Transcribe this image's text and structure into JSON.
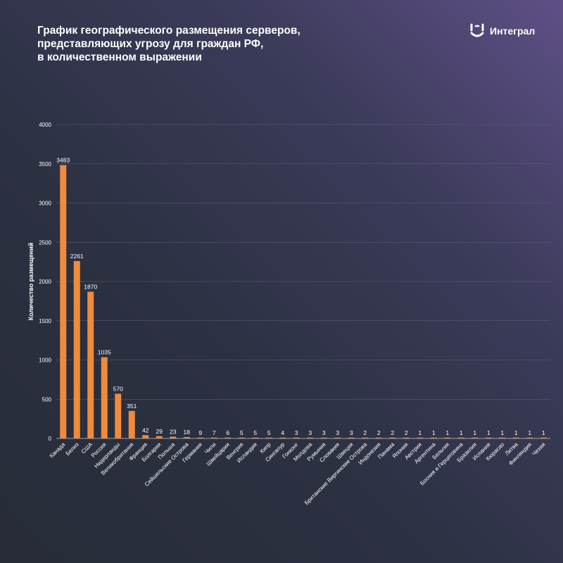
{
  "header": {
    "title_lines": [
      "График географического размещения серверов,",
      "представляющих угрозу для граждан РФ,",
      "в количественном выражении"
    ],
    "logo_text": "Интеграл",
    "logo_icon": "integral-logo-icon"
  },
  "colors": {
    "bar": "#f08a3c",
    "gridline": "#5c6275",
    "axis": "#9aa0ad",
    "text": "#ffffff"
  },
  "chart_data": {
    "type": "bar",
    "title": "График географического размещения серверов, представляющих угрозу для граждан РФ, в количественном выражении",
    "xlabel": "",
    "ylabel": "Количество размещений",
    "ylim": [
      0,
      4000
    ],
    "yticks": [
      0,
      500,
      1000,
      1500,
      2000,
      2500,
      3000,
      3500,
      4000
    ],
    "grid": true,
    "legend": "none",
    "categories": [
      "Канада",
      "Белиз",
      "США",
      "Россия",
      "Нидерланды",
      "Великобритания",
      "Франция",
      "Болгария",
      "Польша",
      "Сейшельские Острова",
      "Германия",
      "Чили",
      "Швейцария",
      "Венгрия",
      "Исландия",
      "Кипр",
      "Сингапур",
      "Гонконг",
      "Молдова",
      "Румыния",
      "Словакия",
      "Швеция",
      "Британские Виргинские Острова",
      "Индонезия",
      "Панама",
      "Япония",
      "Австрия",
      "Аргентина",
      "Бельгия",
      "Босния и Герцеговина",
      "Бразилия",
      "Испания",
      "Кюрасао",
      "Литва",
      "Финляндия",
      "Чехия"
    ],
    "values": [
      3483,
      2261,
      1870,
      1035,
      570,
      351,
      42,
      29,
      23,
      18,
      9,
      7,
      6,
      5,
      5,
      5,
      4,
      3,
      3,
      3,
      3,
      3,
      2,
      2,
      2,
      2,
      1,
      1,
      1,
      1,
      1,
      1,
      1,
      1,
      1,
      1
    ]
  }
}
